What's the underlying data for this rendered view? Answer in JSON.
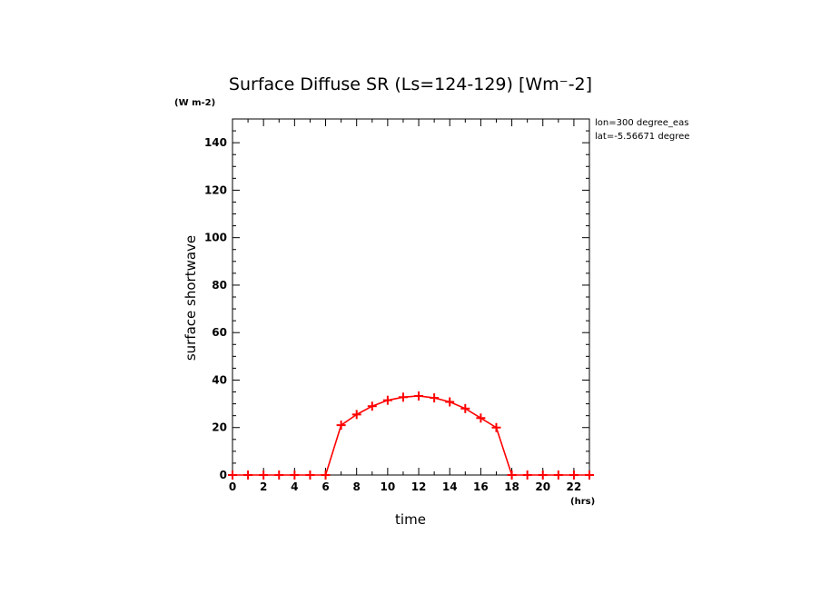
{
  "chart_data": {
    "type": "line",
    "title": "Surface Diffuse SR (Ls=124-129) [Wm⁻-2]",
    "ylabel": "surface shortwave",
    "yunit_note": "(W m-2)",
    "xlabel": "time",
    "xunit_note": "(hrs)",
    "meta_lines": [
      "lon=300 degree_eas",
      "lat=-5.56671 degree"
    ],
    "xlim": [
      0,
      23
    ],
    "ylim": [
      0,
      150
    ],
    "x_ticks": [
      0,
      2,
      4,
      6,
      8,
      10,
      12,
      14,
      16,
      18,
      20,
      22
    ],
    "y_ticks": [
      0,
      20,
      40,
      60,
      80,
      100,
      120,
      140
    ],
    "series": [
      {
        "color": "#ff0000",
        "marker": "plus",
        "x": [
          0,
          1,
          2,
          3,
          4,
          5,
          6,
          7,
          8,
          9,
          10,
          11,
          12,
          13,
          14,
          15,
          16,
          17,
          18,
          19,
          20,
          21,
          22,
          23
        ],
        "y": [
          0,
          0,
          0,
          0,
          0,
          0,
          0,
          21,
          25.5,
          29,
          31.5,
          32.8,
          33.3,
          32.5,
          30.8,
          28,
          24,
          20,
          0,
          0,
          0,
          0,
          0,
          0
        ]
      }
    ]
  }
}
